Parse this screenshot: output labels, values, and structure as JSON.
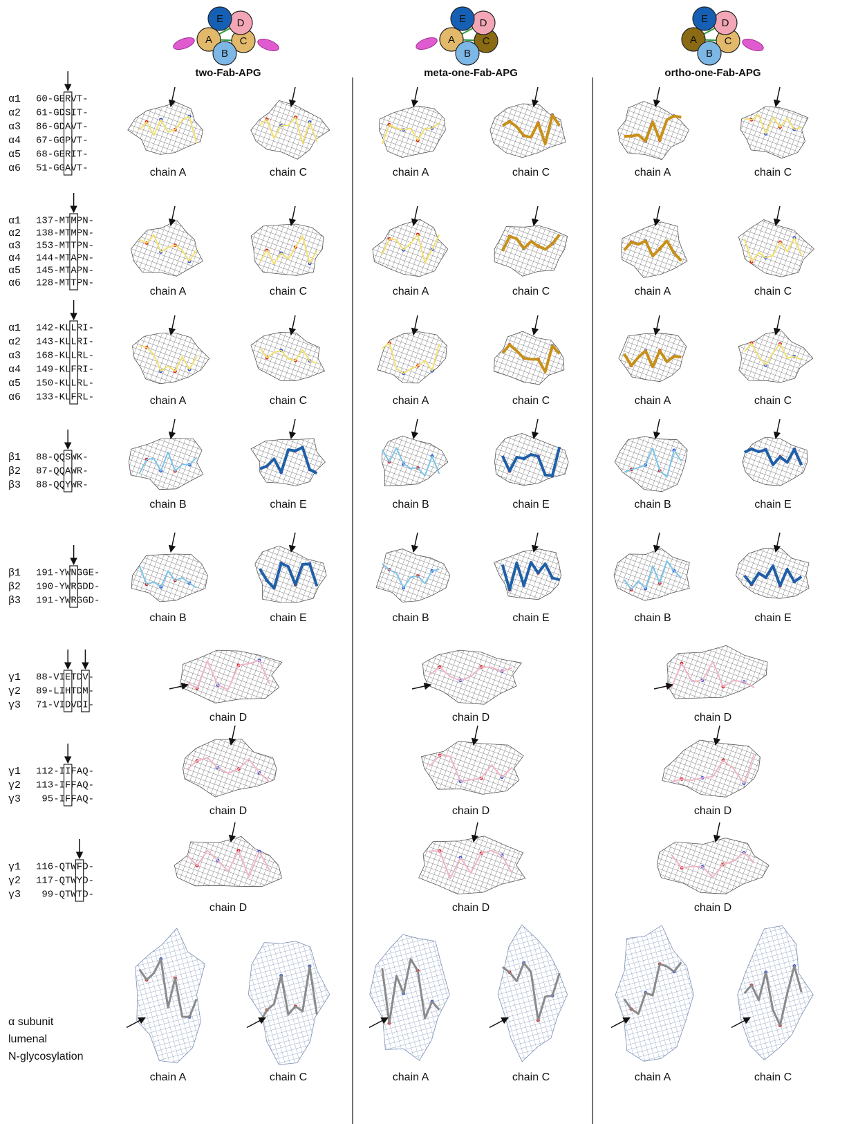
{
  "columns": [
    {
      "title": "two-Fab-APG"
    },
    {
      "title": "meta-one-Fab-APG"
    },
    {
      "title": "ortho-one-Fab-APG"
    }
  ],
  "subunit_labels": [
    "E",
    "D",
    "A",
    "C",
    "B"
  ],
  "alignments": [
    [
      [
        "α1",
        "60-GERVT-"
      ],
      [
        "α2",
        "61-GDSIT-"
      ],
      [
        "α3",
        "86-GDAVT-"
      ],
      [
        "α4",
        "67-GGPVT-"
      ],
      [
        "α5",
        "68-GERIT-"
      ],
      [
        "α6",
        "51-GGAVT-"
      ]
    ],
    [
      [
        "α1",
        "137-MTMPN-"
      ],
      [
        "α2",
        "138-MTMPN-"
      ],
      [
        "α3",
        "153-MTTPN-"
      ],
      [
        "α4",
        "144-MTAPN-"
      ],
      [
        "α5",
        "145-MTAPN-"
      ],
      [
        "α6",
        "128-MTTPN-"
      ]
    ],
    [
      [
        "α1",
        "142-KLLRI-"
      ],
      [
        "α2",
        "143-KLLRI-"
      ],
      [
        "α3",
        "168-KLLRL-"
      ],
      [
        "α4",
        "149-KLFRI-"
      ],
      [
        "α5",
        "150-KLLRL-"
      ],
      [
        "α6",
        "133-KLFRL-"
      ]
    ],
    [
      [
        "β1",
        "88-QQSWK-"
      ],
      [
        "β2",
        "87-QQAWR-"
      ],
      [
        "β3",
        "88-QQYWR-"
      ]
    ],
    [
      [
        "β1",
        "191-YWNGGE-"
      ],
      [
        "β2",
        "190-YWRGDD-"
      ],
      [
        "β3",
        "191-YWRGGD-"
      ]
    ],
    [
      [
        "γ1",
        "88-VIETDV-"
      ],
      [
        "γ2",
        "89-LIHTDM-"
      ],
      [
        "γ3",
        "71-VIDVDI-"
      ]
    ],
    [
      [
        "γ1",
        "112-IIFAQ-"
      ],
      [
        "γ2",
        "113-IFFAQ-"
      ],
      [
        "γ3",
        "95-IFFAQ-"
      ]
    ],
    [
      [
        "γ1",
        "116-QTWFD-"
      ],
      [
        "γ2",
        "117-QTWYD-"
      ],
      [
        "γ3",
        "99-QTWTD-"
      ]
    ]
  ],
  "glycosylation_label": [
    "α subunit",
    "lumenal",
    "N-glycosylation"
  ],
  "panels": [
    [
      [
        "chain A",
        "chain C"
      ],
      [
        "chain A",
        "chain C"
      ],
      [
        "chain A",
        "chain C"
      ]
    ],
    [
      [
        "chain A",
        "chain C"
      ],
      [
        "chain A",
        "chain C"
      ],
      [
        "chain A",
        "chain C"
      ]
    ],
    [
      [
        "chain A",
        "chain C"
      ],
      [
        "chain A",
        "chain C"
      ],
      [
        "chain A",
        "chain C"
      ]
    ],
    [
      [
        "chain B",
        "chain E"
      ],
      [
        "chain B",
        "chain E"
      ],
      [
        "chain B",
        "chain E"
      ]
    ],
    [
      [
        "chain B",
        "chain E"
      ],
      [
        "chain B",
        "chain E"
      ],
      [
        "chain B",
        "chain E"
      ]
    ],
    [
      [
        "chain D"
      ],
      [
        "chain D"
      ],
      [
        "chain D"
      ]
    ],
    [
      [
        "chain D"
      ],
      [
        "chain D"
      ],
      [
        "chain D"
      ]
    ],
    [
      [
        "chain D"
      ],
      [
        "chain D"
      ],
      [
        "chain D"
      ]
    ],
    [
      [
        "chain A",
        "chain C"
      ],
      [
        "chain A",
        "chain C"
      ],
      [
        "chain A",
        "chain C"
      ]
    ]
  ]
}
